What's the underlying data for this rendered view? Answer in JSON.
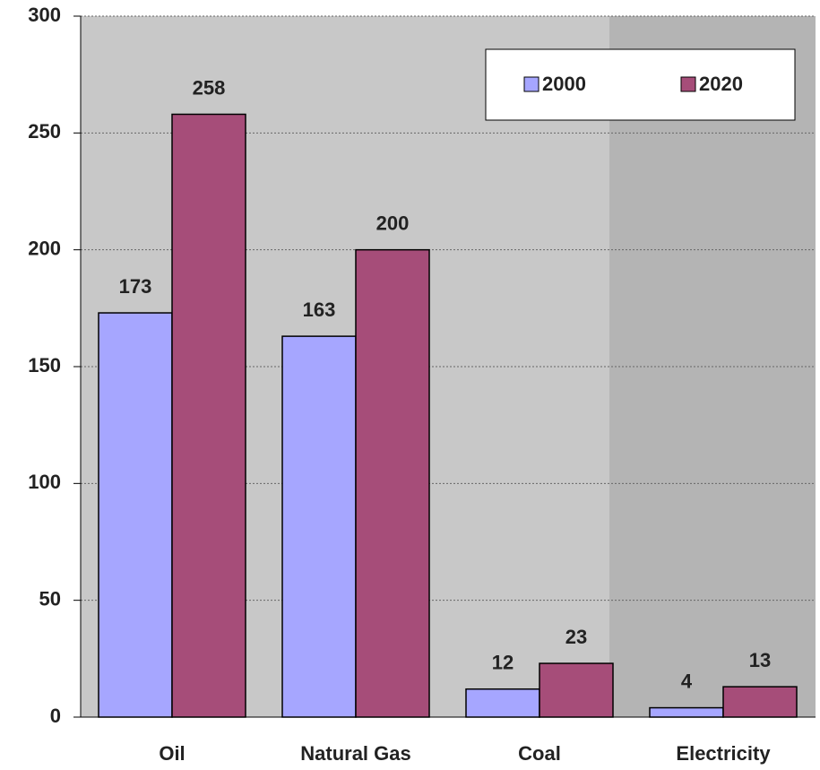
{
  "chart_data": {
    "type": "bar",
    "categories": [
      "Oil",
      "Natural Gas",
      "Coal",
      "Electricity"
    ],
    "series": [
      {
        "name": "2000",
        "color": "#a6a6ff",
        "values": [
          173,
          163,
          12,
          4
        ]
      },
      {
        "name": "2020",
        "color": "#a64d79",
        "values": [
          258,
          200,
          23,
          13
        ]
      }
    ],
    "ylim": [
      0,
      300
    ],
    "yticks": [
      0,
      50,
      100,
      150,
      200,
      250,
      300
    ],
    "grid": true,
    "legend": "top-right"
  }
}
